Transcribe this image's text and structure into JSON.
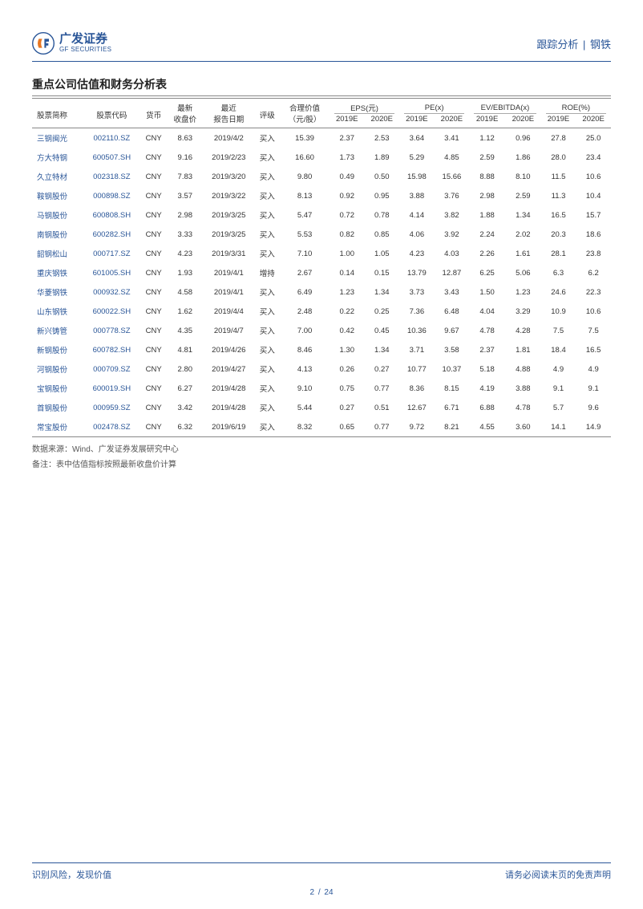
{
  "header": {
    "logo_cn": "广发证券",
    "logo_en": "GF SECURITIES",
    "breadcrumb_left": "跟踪分析",
    "breadcrumb_sep": "|",
    "breadcrumb_right": "钢铁"
  },
  "section_title": "重点公司估值和财务分析表",
  "table": {
    "header_top": {
      "c0": "股票简称",
      "c1": "股票代码",
      "c2": "货币",
      "c3": "最新",
      "c4": "最近",
      "c5": "评级",
      "c6": "合理价值",
      "g1": "EPS(元)",
      "g2": "PE(x)",
      "g3": "EV/EBITDA(x)",
      "g4": "ROE(%)"
    },
    "header_sub": {
      "c3": "收盘价",
      "c4": "报告日期",
      "c6": "（元/股）",
      "y1": "2019E",
      "y2": "2020E"
    },
    "rows": [
      [
        "三钢闽光",
        "002110.SZ",
        "CNY",
        "8.63",
        "2019/4/2",
        "买入",
        "15.39",
        "2.37",
        "2.53",
        "3.64",
        "3.41",
        "1.12",
        "0.96",
        "27.8",
        "25.0"
      ],
      [
        "方大特钢",
        "600507.SH",
        "CNY",
        "9.16",
        "2019/2/23",
        "买入",
        "16.60",
        "1.73",
        "1.89",
        "5.29",
        "4.85",
        "2.59",
        "1.86",
        "28.0",
        "23.4"
      ],
      [
        "久立特材",
        "002318.SZ",
        "CNY",
        "7.83",
        "2019/3/20",
        "买入",
        "9.80",
        "0.49",
        "0.50",
        "15.98",
        "15.66",
        "8.88",
        "8.10",
        "11.5",
        "10.6"
      ],
      [
        "鞍钢股份",
        "000898.SZ",
        "CNY",
        "3.57",
        "2019/3/22",
        "买入",
        "8.13",
        "0.92",
        "0.95",
        "3.88",
        "3.76",
        "2.98",
        "2.59",
        "11.3",
        "10.4"
      ],
      [
        "马钢股份",
        "600808.SH",
        "CNY",
        "2.98",
        "2019/3/25",
        "买入",
        "5.47",
        "0.72",
        "0.78",
        "4.14",
        "3.82",
        "1.88",
        "1.34",
        "16.5",
        "15.7"
      ],
      [
        "南钢股份",
        "600282.SH",
        "CNY",
        "3.33",
        "2019/3/25",
        "买入",
        "5.53",
        "0.82",
        "0.85",
        "4.06",
        "3.92",
        "2.24",
        "2.02",
        "20.3",
        "18.6"
      ],
      [
        "韶钢松山",
        "000717.SZ",
        "CNY",
        "4.23",
        "2019/3/31",
        "买入",
        "7.10",
        "1.00",
        "1.05",
        "4.23",
        "4.03",
        "2.26",
        "1.61",
        "28.1",
        "23.8"
      ],
      [
        "重庆钢铁",
        "601005.SH",
        "CNY",
        "1.93",
        "2019/4/1",
        "增持",
        "2.67",
        "0.14",
        "0.15",
        "13.79",
        "12.87",
        "6.25",
        "5.06",
        "6.3",
        "6.2"
      ],
      [
        "华菱钢铁",
        "000932.SZ",
        "CNY",
        "4.58",
        "2019/4/1",
        "买入",
        "6.49",
        "1.23",
        "1.34",
        "3.73",
        "3.43",
        "1.50",
        "1.23",
        "24.6",
        "22.3"
      ],
      [
        "山东钢铁",
        "600022.SH",
        "CNY",
        "1.62",
        "2019/4/4",
        "买入",
        "2.48",
        "0.22",
        "0.25",
        "7.36",
        "6.48",
        "4.04",
        "3.29",
        "10.9",
        "10.6"
      ],
      [
        "新兴铸管",
        "000778.SZ",
        "CNY",
        "4.35",
        "2019/4/7",
        "买入",
        "7.00",
        "0.42",
        "0.45",
        "10.36",
        "9.67",
        "4.78",
        "4.28",
        "7.5",
        "7.5"
      ],
      [
        "新钢股份",
        "600782.SH",
        "CNY",
        "4.81",
        "2019/4/26",
        "买入",
        "8.46",
        "1.30",
        "1.34",
        "3.71",
        "3.58",
        "2.37",
        "1.81",
        "18.4",
        "16.5"
      ],
      [
        "河钢股份",
        "000709.SZ",
        "CNY",
        "2.80",
        "2019/4/27",
        "买入",
        "4.13",
        "0.26",
        "0.27",
        "10.77",
        "10.37",
        "5.18",
        "4.88",
        "4.9",
        "4.9"
      ],
      [
        "宝钢股份",
        "600019.SH",
        "CNY",
        "6.27",
        "2019/4/28",
        "买入",
        "9.10",
        "0.75",
        "0.77",
        "8.36",
        "8.15",
        "4.19",
        "3.88",
        "9.1",
        "9.1"
      ],
      [
        "首钢股份",
        "000959.SZ",
        "CNY",
        "3.42",
        "2019/4/28",
        "买入",
        "5.44",
        "0.27",
        "0.51",
        "12.67",
        "6.71",
        "6.88",
        "4.78",
        "5.7",
        "9.6"
      ],
      [
        "常宝股份",
        "002478.SZ",
        "CNY",
        "6.32",
        "2019/6/19",
        "买入",
        "8.32",
        "0.65",
        "0.77",
        "9.72",
        "8.21",
        "4.55",
        "3.60",
        "14.1",
        "14.9"
      ]
    ]
  },
  "source": {
    "line1": "数据来源：Wind、广发证券发展研究中心",
    "line2": "备注：表中估值指标按照最新收盘价计算"
  },
  "footer": {
    "left": "识别风险，发现价值",
    "right": "请务必阅读末页的免责声明",
    "page_current": "2",
    "page_total": "24",
    "slash": "/"
  },
  "colors": {
    "brand": "#2a5698",
    "orange": "#e87722"
  }
}
